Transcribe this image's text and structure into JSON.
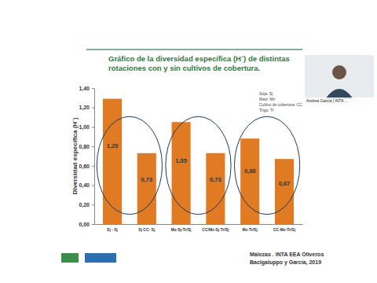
{
  "chart_data": {
    "type": "bar",
    "title": "Gráfico de la diversidad específica (H´) de distintas rotaciones con y sin cultivos de cobertura.",
    "y_label": "Diversidad específica (H´)",
    "categories": [
      "Sj - Sj",
      "Sj CC- Sj",
      "Mz-Sj-Tr/Sj",
      "CC/Mz-Sj-Tr/Sj",
      "Mz-Tr/Sj",
      "CC-Mz-Tr/Sj"
    ],
    "values": [
      1.29,
      0.73,
      1.05,
      0.73,
      0.88,
      0.67
    ],
    "value_labels": [
      "1,29",
      "0,73",
      "1,05",
      "0,73",
      "0,88",
      "0,67"
    ],
    "data_labels": true,
    "color": "#e07b24",
    "ylim": [
      0,
      1.4
    ],
    "yticks": [
      {
        "value": 0,
        "label": "0,00"
      },
      {
        "value": 0.2,
        "label": "0,20"
      },
      {
        "value": 0.4,
        "label": "0,40"
      },
      {
        "value": 0.6,
        "label": "0,60"
      },
      {
        "value": 0.8,
        "label": "0,80"
      },
      {
        "value": 1.0,
        "label": "1,00"
      },
      {
        "value": 1.2,
        "label": "1,20"
      },
      {
        "value": 1.4,
        "label": "1,40"
      }
    ],
    "grid": false,
    "annotations": [
      "Soja: Sj",
      "Maíz: Mz",
      "Cultivo de cobertura: CC",
      "Trigo: Tr"
    ],
    "source": [
      "Malezas . INTA EEA Oliveros",
      "Bacigaluppo y García, 2019"
    ],
    "speaker": "Andrea García | INTA ..."
  }
}
